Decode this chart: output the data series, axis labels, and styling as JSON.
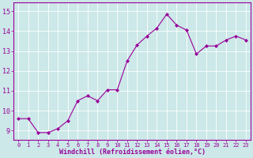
{
  "x": [
    0,
    1,
    2,
    3,
    4,
    5,
    6,
    7,
    8,
    9,
    10,
    11,
    12,
    13,
    14,
    15,
    16,
    17,
    18,
    19,
    20,
    21,
    22,
    23
  ],
  "y": [
    9.6,
    9.6,
    8.9,
    8.9,
    9.1,
    9.5,
    10.5,
    10.75,
    10.5,
    11.05,
    11.05,
    12.5,
    13.3,
    13.75,
    14.15,
    14.85,
    14.3,
    14.05,
    12.85,
    13.25,
    13.25,
    13.55,
    13.75,
    13.55
  ],
  "line_color": "#990099",
  "marker": "D",
  "marker_size": 2,
  "bg_color": "#cce8e8",
  "grid_color": "#ffffff",
  "xlabel": "Windchill (Refroidissement éolien,°C)",
  "ylabel_ticks": [
    9,
    10,
    11,
    12,
    13,
    14,
    15
  ],
  "xticks": [
    0,
    1,
    2,
    3,
    4,
    5,
    6,
    7,
    8,
    9,
    10,
    11,
    12,
    13,
    14,
    15,
    16,
    17,
    18,
    19,
    20,
    21,
    22,
    23
  ],
  "ylim": [
    8.55,
    15.45
  ],
  "xlim": [
    -0.5,
    23.5
  ],
  "axis_color": "#990099",
  "tick_color": "#990099",
  "xlabel_fontsize": 6,
  "xtick_fontsize": 5,
  "ytick_fontsize": 6
}
